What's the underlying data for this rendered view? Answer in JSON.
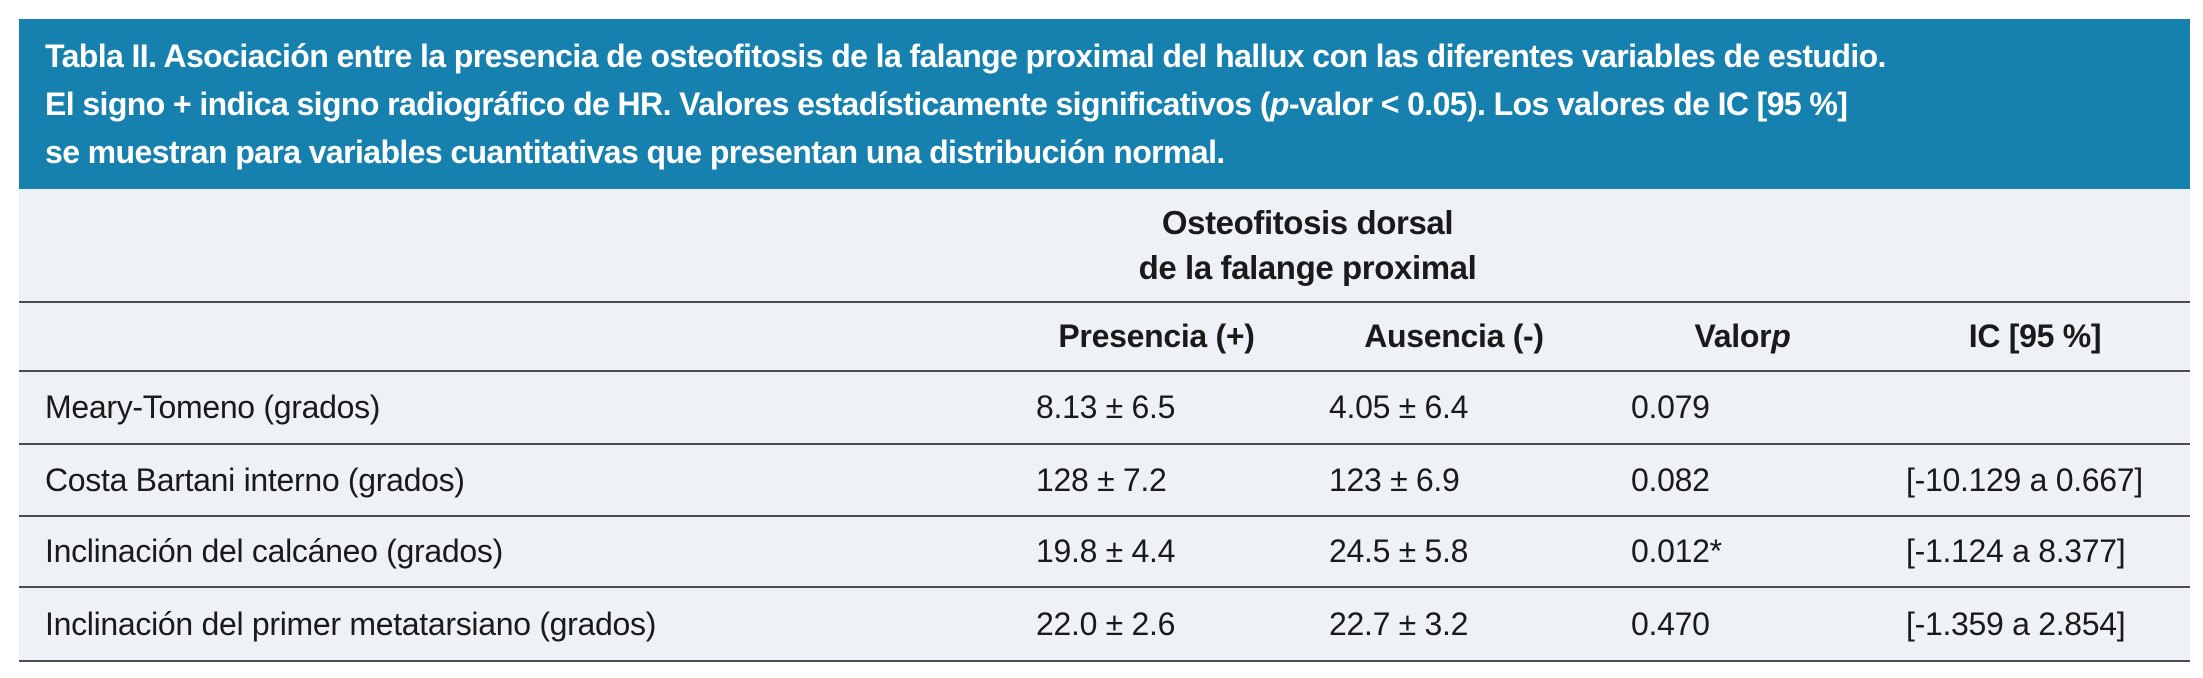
{
  "colors": {
    "banner_bg": "#1680af",
    "banner_text": "#ffffff",
    "table_bg": "#eef1f5",
    "rule": "#4d4d4d",
    "body_text": "#1a1a1a"
  },
  "banner": {
    "lines": [
      {
        "segments": [
          {
            "t": "Tabla II. Asociación entre la presencia de osteofitosis de la falange proximal del hallux con las diferentes variables de estudio."
          }
        ]
      },
      {
        "segments": [
          {
            "t": "El signo + indica signo radiográfico de HR. Valores estadísticamente significativos ("
          },
          {
            "t": "p",
            "italic": true
          },
          {
            "t": "-valor < 0.05). Los valores de IC [95 %]"
          }
        ]
      },
      {
        "segments": [
          {
            "t": "se muestran para variables cuantitativas que presentan una distribución normal."
          }
        ]
      }
    ]
  },
  "table": {
    "group_header": {
      "line1": "Osteofitosis dorsal",
      "line2": "de la falange proximal"
    },
    "columns": [
      {
        "segments": [
          {
            "t": "Presencia (+)"
          }
        ]
      },
      {
        "segments": [
          {
            "t": "Ausencia (-)"
          }
        ]
      },
      {
        "segments": [
          {
            "t": "Valor "
          },
          {
            "t": "p",
            "italic": true
          }
        ]
      },
      {
        "segments": [
          {
            "t": "IC [95 %]"
          }
        ]
      }
    ],
    "rows": [
      {
        "label": "Meary-Tomeno (grados)",
        "presencia": "8.13 ± 6.5",
        "ausencia": "4.05 ± 6.4",
        "p_value": "0.079",
        "ic": ""
      },
      {
        "label": "Costa Bartani interno (grados)",
        "presencia": "128 ± 7.2",
        "ausencia": "123 ± 6.9",
        "p_value": "0.082",
        "ic": "[-10.129 a 0.667]"
      },
      {
        "label": "Inclinación del calcáneo (grados)",
        "presencia": "19.8 ± 4.4",
        "ausencia": "24.5 ± 5.8",
        "p_value": "0.012*",
        "ic": "[-1.124 a 8.377]"
      },
      {
        "label": "Inclinación del primer metatarsiano (grados)",
        "presencia": "22.0 ± 2.6",
        "ausencia": "22.7 ± 3.2",
        "p_value": "0.470",
        "ic": "[-1.359 a 2.854]"
      }
    ]
  }
}
